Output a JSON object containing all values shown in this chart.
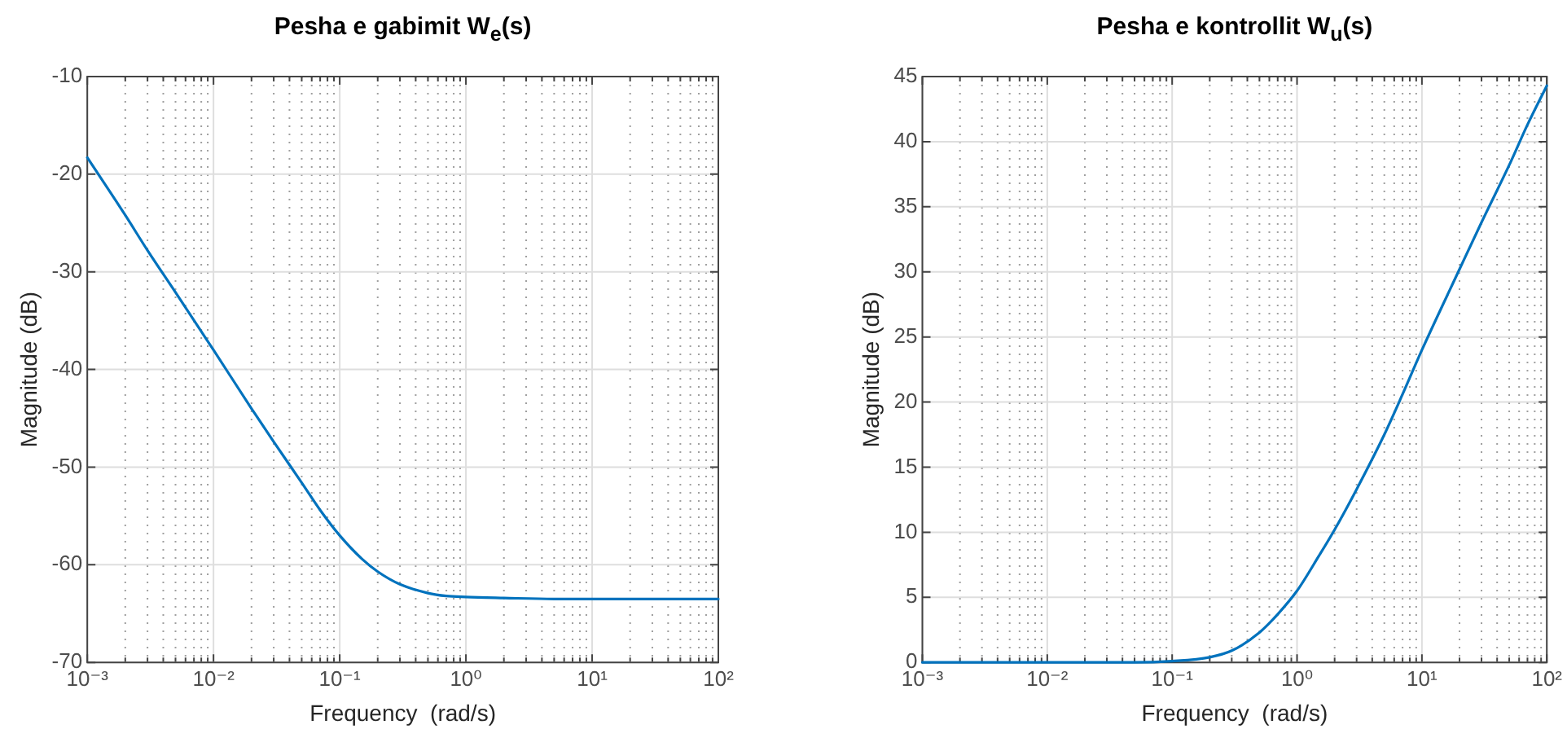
{
  "chart_data": [
    {
      "type": "line",
      "title": "Pesha e gabimit W$_{e}$(s)",
      "xlabel": "Frequency  (rad/s)",
      "ylabel": "Magnitude (dB)",
      "log": "x",
      "grid": true,
      "legend": false,
      "marker": "none",
      "line_style": "solid",
      "xlim": [
        0.001,
        100
      ],
      "ylim": [
        -70,
        -10
      ],
      "xticks": [
        {
          "value": 0.001,
          "label": "10⁻³"
        },
        {
          "value": 0.002,
          "label": null
        },
        {
          "value": 0.003,
          "label": null
        },
        {
          "value": 0.004,
          "label": null
        },
        {
          "value": 0.005,
          "label": null
        },
        {
          "value": 0.006,
          "label": null
        },
        {
          "value": 0.007,
          "label": null
        },
        {
          "value": 0.008,
          "label": null
        },
        {
          "value": 0.009,
          "label": null
        },
        {
          "value": 0.01,
          "label": "10⁻²"
        },
        {
          "value": 0.02,
          "label": null
        },
        {
          "value": 0.03,
          "label": null
        },
        {
          "value": 0.04,
          "label": null
        },
        {
          "value": 0.05,
          "label": null
        },
        {
          "value": 0.06,
          "label": null
        },
        {
          "value": 0.07,
          "label": null
        },
        {
          "value": 0.08,
          "label": null
        },
        {
          "value": 0.09,
          "label": null
        },
        {
          "value": 0.1,
          "label": "10⁻¹"
        },
        {
          "value": 0.2,
          "label": null
        },
        {
          "value": 0.3,
          "label": null
        },
        {
          "value": 0.4,
          "label": null
        },
        {
          "value": 0.5,
          "label": null
        },
        {
          "value": 0.6,
          "label": null
        },
        {
          "value": 0.7,
          "label": null
        },
        {
          "value": 0.8,
          "label": null
        },
        {
          "value": 0.9,
          "label": null
        },
        {
          "value": 1,
          "label": "10⁰"
        },
        {
          "value": 2,
          "label": null
        },
        {
          "value": 3,
          "label": null
        },
        {
          "value": 4,
          "label": null
        },
        {
          "value": 5,
          "label": null
        },
        {
          "value": 6,
          "label": null
        },
        {
          "value": 7,
          "label": null
        },
        {
          "value": 8,
          "label": null
        },
        {
          "value": 9,
          "label": null
        },
        {
          "value": 10,
          "label": "10¹"
        },
        {
          "value": 20,
          "label": null
        },
        {
          "value": 30,
          "label": null
        },
        {
          "value": 40,
          "label": null
        },
        {
          "value": 50,
          "label": null
        },
        {
          "value": 60,
          "label": null
        },
        {
          "value": 70,
          "label": null
        },
        {
          "value": 80,
          "label": null
        },
        {
          "value": 90,
          "label": null
        },
        {
          "value": 100,
          "label": "10²"
        }
      ],
      "yticks": [
        -70,
        -60,
        -50,
        -40,
        -30,
        -20,
        -10
      ],
      "series": [
        {
          "color": "#0072bd",
          "x": [
            0.001,
            0.002,
            0.003,
            0.005,
            0.01,
            0.02,
            0.03,
            0.05,
            0.07,
            0.1,
            0.15,
            0.2,
            0.3,
            0.5,
            0.7,
            1,
            2,
            5,
            10,
            100
          ],
          "values": [
            -18.3,
            -24.2,
            -27.8,
            -32.1,
            -38,
            -44,
            -47.4,
            -51.6,
            -54.4,
            -57,
            -59.4,
            -60.7,
            -62,
            -62.9,
            -63.2,
            -63.3,
            -63.4,
            -63.5,
            -63.5,
            -63.5
          ]
        }
      ]
    },
    {
      "type": "line",
      "title": "Pesha e kontrollit W$_{u}$(s)",
      "xlabel": "Frequency  (rad/s)",
      "ylabel": "Magnitude (dB)",
      "log": "x",
      "grid": true,
      "legend": false,
      "marker": "none",
      "line_style": "solid",
      "xlim": [
        0.001,
        100
      ],
      "ylim": [
        0,
        45
      ],
      "xticks": [
        {
          "value": 0.001,
          "label": "10⁻³"
        },
        {
          "value": 0.002,
          "label": null
        },
        {
          "value": 0.003,
          "label": null
        },
        {
          "value": 0.004,
          "label": null
        },
        {
          "value": 0.005,
          "label": null
        },
        {
          "value": 0.006,
          "label": null
        },
        {
          "value": 0.007,
          "label": null
        },
        {
          "value": 0.008,
          "label": null
        },
        {
          "value": 0.009,
          "label": null
        },
        {
          "value": 0.01,
          "label": "10⁻²"
        },
        {
          "value": 0.02,
          "label": null
        },
        {
          "value": 0.03,
          "label": null
        },
        {
          "value": 0.04,
          "label": null
        },
        {
          "value": 0.05,
          "label": null
        },
        {
          "value": 0.06,
          "label": null
        },
        {
          "value": 0.07,
          "label": null
        },
        {
          "value": 0.08,
          "label": null
        },
        {
          "value": 0.09,
          "label": null
        },
        {
          "value": 0.1,
          "label": "10⁻¹"
        },
        {
          "value": 0.2,
          "label": null
        },
        {
          "value": 0.3,
          "label": null
        },
        {
          "value": 0.4,
          "label": null
        },
        {
          "value": 0.5,
          "label": null
        },
        {
          "value": 0.6,
          "label": null
        },
        {
          "value": 0.7,
          "label": null
        },
        {
          "value": 0.8,
          "label": null
        },
        {
          "value": 0.9,
          "label": null
        },
        {
          "value": 1,
          "label": "10⁰"
        },
        {
          "value": 2,
          "label": null
        },
        {
          "value": 3,
          "label": null
        },
        {
          "value": 4,
          "label": null
        },
        {
          "value": 5,
          "label": null
        },
        {
          "value": 6,
          "label": null
        },
        {
          "value": 7,
          "label": null
        },
        {
          "value": 8,
          "label": null
        },
        {
          "value": 9,
          "label": null
        },
        {
          "value": 10,
          "label": "10¹"
        },
        {
          "value": 20,
          "label": null
        },
        {
          "value": 30,
          "label": null
        },
        {
          "value": 40,
          "label": null
        },
        {
          "value": 50,
          "label": null
        },
        {
          "value": 60,
          "label": null
        },
        {
          "value": 70,
          "label": null
        },
        {
          "value": 80,
          "label": null
        },
        {
          "value": 90,
          "label": null
        },
        {
          "value": 100,
          "label": "10²"
        }
      ],
      "yticks": [
        0,
        5,
        10,
        15,
        20,
        25,
        30,
        35,
        40,
        45
      ],
      "series": [
        {
          "color": "#0072bd",
          "x": [
            0.001,
            0.01,
            0.05,
            0.1,
            0.2,
            0.3,
            0.5,
            0.7,
            1,
            1.5,
            2,
            3,
            5,
            7,
            10,
            20,
            30,
            50,
            70,
            100
          ],
          "values": [
            0,
            0,
            0,
            0.1,
            0.4,
            0.9,
            2.3,
            3.7,
            5.5,
            8.2,
            10.2,
            13.3,
            17.5,
            20.6,
            24,
            30.2,
            33.8,
            38.2,
            41.3,
            44.3
          ]
        }
      ]
    }
  ]
}
